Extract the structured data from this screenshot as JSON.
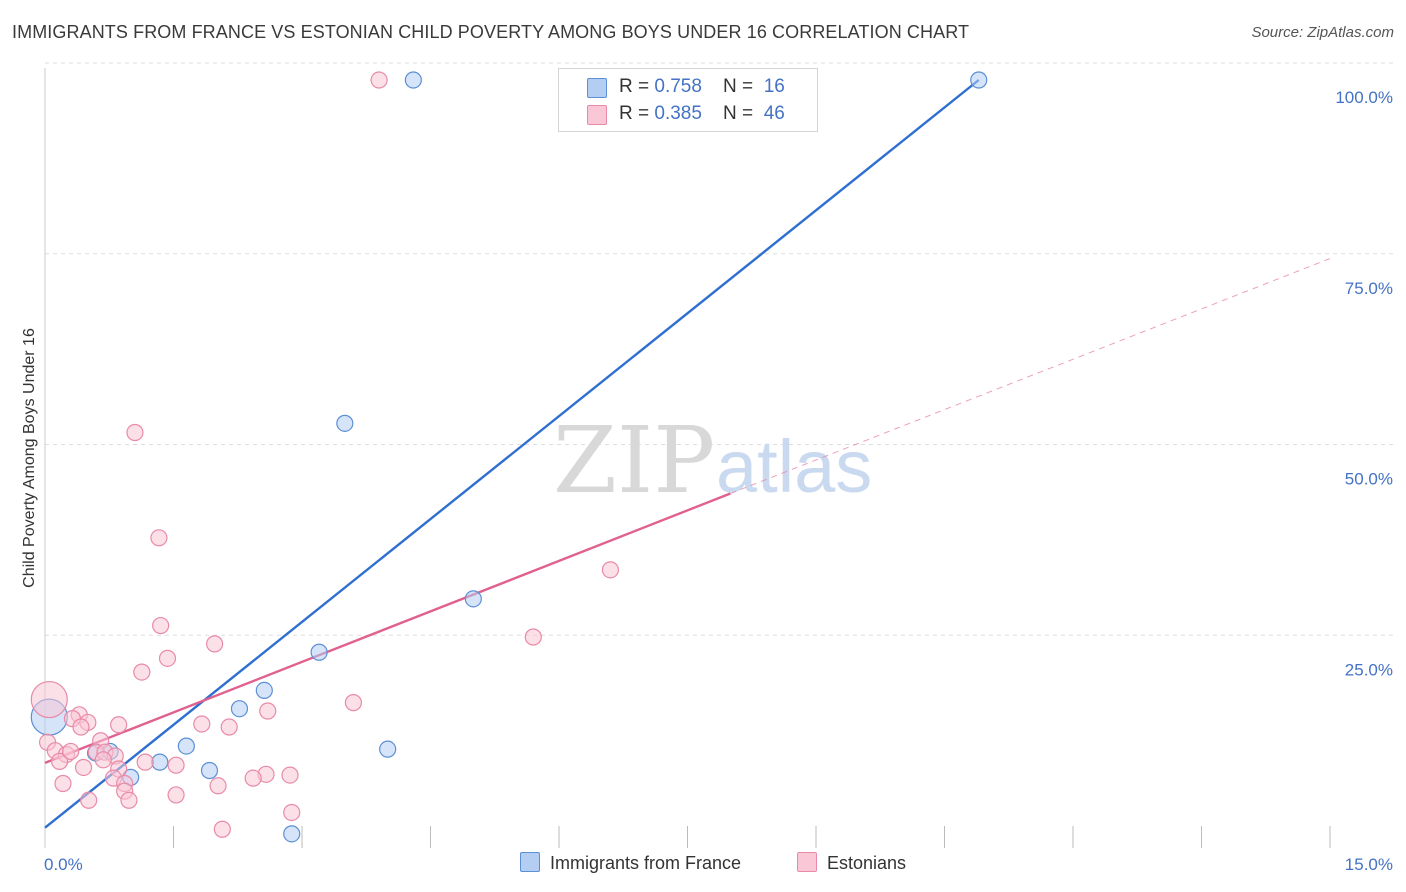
{
  "header": {
    "title": "IMMIGRANTS FROM FRANCE VS ESTONIAN CHILD POVERTY AMONG BOYS UNDER 16 CORRELATION CHART",
    "source": "Source: ZipAtlas.com"
  },
  "watermark": {
    "zip": "ZIP",
    "atlas": "atlas"
  },
  "legend": {
    "france": {
      "r_label": "R = ",
      "r_value": "0.758",
      "n_label": "N = ",
      "n_value": "16"
    },
    "estonians": {
      "r_label": "R = ",
      "r_value": "0.385",
      "n_label": "N = ",
      "n_value": "46"
    }
  },
  "bottom_legend": {
    "france_label": "Immigrants from France",
    "estonians_label": "Estonians"
  },
  "chart_data": {
    "type": "scatter",
    "title": "IMMIGRANTS FROM FRANCE VS ESTONIAN CHILD POVERTY AMONG BOYS UNDER 16 CORRELATION CHART",
    "xlabel": "",
    "ylabel": "Child Poverty Among Boys Under 16",
    "xlim": [
      0,
      15
    ],
    "ylim": [
      0,
      100
    ],
    "x_tick_labels": [
      "0.0%",
      "15.0%"
    ],
    "y_ticks": [
      25,
      50,
      75,
      100
    ],
    "y_tick_labels": [
      "25.0%",
      "50.0%",
      "75.0%",
      "100.0%"
    ],
    "colors": {
      "france": "#5b8fd6",
      "france_fill": "#b3cdf3",
      "france_line": "#2f6fd0",
      "estonians": "#e88aa8",
      "estonians_fill": "#f9c7d6",
      "estonians_line": "#e0608f",
      "grid": "#dddddd",
      "label": "#4472c4"
    },
    "series": [
      {
        "name": "Immigrants from France",
        "key": "france",
        "r": 0.758,
        "n": 16,
        "points": [
          {
            "x": 4.3,
            "y": 100
          },
          {
            "x": 10.9,
            "y": 100
          },
          {
            "x": 3.5,
            "y": 55
          },
          {
            "x": 5.0,
            "y": 32
          },
          {
            "x": 3.2,
            "y": 25
          },
          {
            "x": 2.56,
            "y": 20
          },
          {
            "x": 2.27,
            "y": 17.6
          },
          {
            "x": 1.65,
            "y": 12.7
          },
          {
            "x": 0.76,
            "y": 12
          },
          {
            "x": 0.59,
            "y": 11.8
          },
          {
            "x": 4.0,
            "y": 12.3
          },
          {
            "x": 1.34,
            "y": 10.6
          },
          {
            "x": 1.92,
            "y": 9.5
          },
          {
            "x": 1.0,
            "y": 8.6
          },
          {
            "x": 2.88,
            "y": 1.2
          },
          {
            "x": 0.05,
            "y": 16.5,
            "size": "large"
          }
        ],
        "trend": {
          "x0": 0,
          "y0": 2,
          "x1": 10.9,
          "y1": 100,
          "dashed_to": null
        }
      },
      {
        "name": "Estonians",
        "key": "estonians",
        "r": 0.385,
        "n": 46,
        "points": [
          {
            "x": 3.9,
            "y": 100
          },
          {
            "x": 1.05,
            "y": 53.8
          },
          {
            "x": 1.33,
            "y": 40
          },
          {
            "x": 6.6,
            "y": 35.8
          },
          {
            "x": 1.35,
            "y": 28.5
          },
          {
            "x": 5.7,
            "y": 27
          },
          {
            "x": 1.98,
            "y": 26.1
          },
          {
            "x": 1.43,
            "y": 24.2
          },
          {
            "x": 1.13,
            "y": 22.4
          },
          {
            "x": 3.6,
            "y": 18.4
          },
          {
            "x": 2.6,
            "y": 17.3
          },
          {
            "x": 0.4,
            "y": 16.8
          },
          {
            "x": 0.32,
            "y": 16.3
          },
          {
            "x": 0.5,
            "y": 15.8
          },
          {
            "x": 0.86,
            "y": 15.5
          },
          {
            "x": 1.83,
            "y": 15.6
          },
          {
            "x": 0.42,
            "y": 15.2
          },
          {
            "x": 2.15,
            "y": 15.2
          },
          {
            "x": 0.03,
            "y": 13.2
          },
          {
            "x": 0.65,
            "y": 13.4
          },
          {
            "x": 0.12,
            "y": 12.1
          },
          {
            "x": 0.25,
            "y": 11.6
          },
          {
            "x": 0.6,
            "y": 11.9
          },
          {
            "x": 0.7,
            "y": 11.9
          },
          {
            "x": 0.82,
            "y": 11.4
          },
          {
            "x": 0.17,
            "y": 10.7
          },
          {
            "x": 0.68,
            "y": 10.9
          },
          {
            "x": 1.17,
            "y": 10.6
          },
          {
            "x": 1.53,
            "y": 10.2
          },
          {
            "x": 0.45,
            "y": 9.9
          },
          {
            "x": 0.86,
            "y": 9.7
          },
          {
            "x": 2.58,
            "y": 9.0
          },
          {
            "x": 2.86,
            "y": 8.9
          },
          {
            "x": 0.8,
            "y": 8.5
          },
          {
            "x": 2.43,
            "y": 8.5
          },
          {
            "x": 0.93,
            "y": 7.8
          },
          {
            "x": 0.21,
            "y": 7.8
          },
          {
            "x": 2.02,
            "y": 7.5
          },
          {
            "x": 0.93,
            "y": 6.8
          },
          {
            "x": 1.53,
            "y": 6.3
          },
          {
            "x": 0.51,
            "y": 5.6
          },
          {
            "x": 0.98,
            "y": 5.6
          },
          {
            "x": 2.88,
            "y": 4.0
          },
          {
            "x": 2.07,
            "y": 1.8
          },
          {
            "x": 0.05,
            "y": 18.8,
            "size": "large"
          },
          {
            "x": 0.3,
            "y": 12.0
          }
        ],
        "trend": {
          "x0": 0,
          "y0": 10.5,
          "x1": 8.0,
          "y1": 45.8,
          "dashed_to": {
            "x": 15,
            "y": 76.6
          }
        }
      }
    ]
  }
}
